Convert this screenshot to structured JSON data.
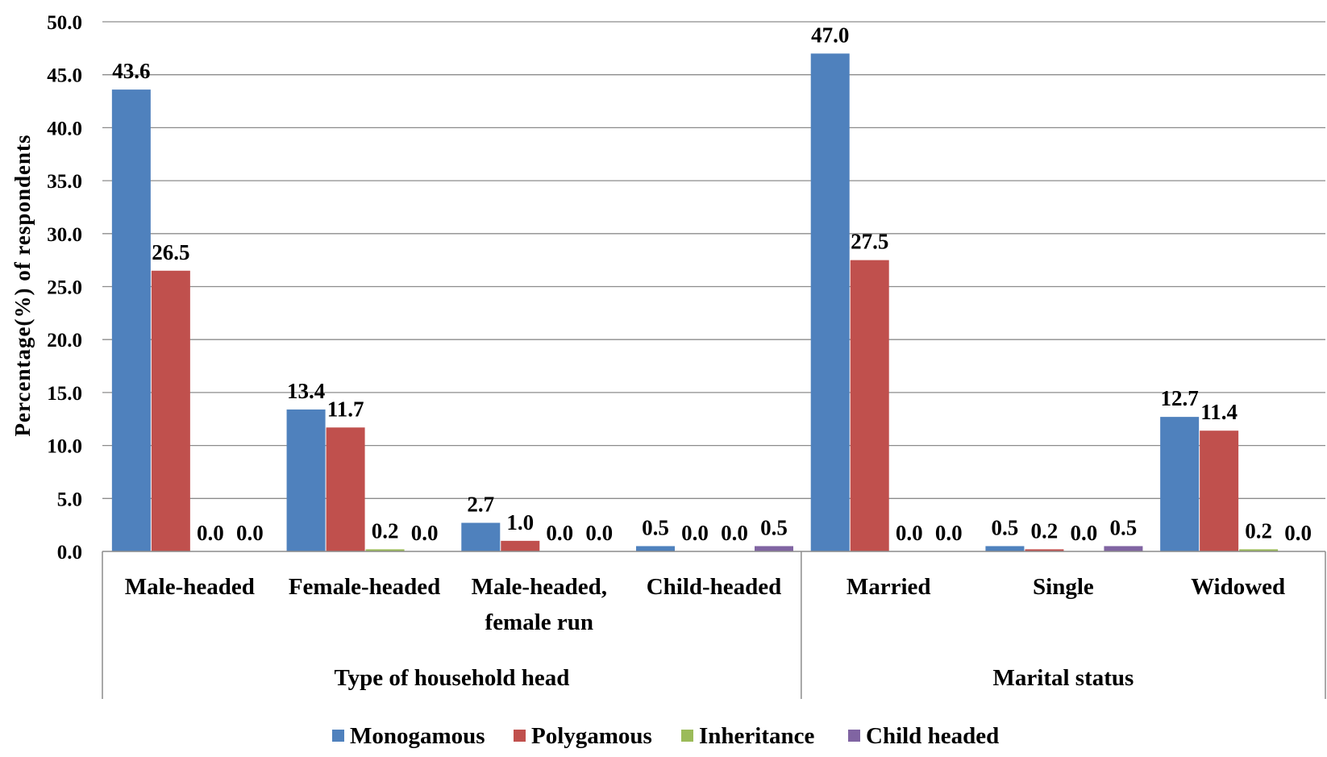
{
  "chart_data": {
    "type": "bar",
    "ylabel": "Percentage(%) of respondents",
    "ylim": [
      0,
      50
    ],
    "yticks": [
      "0.0",
      "5.0",
      "10.0",
      "15.0",
      "20.0",
      "25.0",
      "30.0",
      "35.0",
      "40.0",
      "45.0",
      "50.0"
    ],
    "grid": true,
    "legend_position": "bottom",
    "groups": [
      {
        "label": "Type of household head",
        "categories": [
          0,
          1,
          2,
          3
        ]
      },
      {
        "label": "Marital status",
        "categories": [
          4,
          5,
          6
        ]
      }
    ],
    "categories": [
      [
        "Male-headed"
      ],
      [
        "Female-headed"
      ],
      [
        "Male-headed,",
        "female run"
      ],
      [
        "Child-headed"
      ],
      [
        "Married"
      ],
      [
        "Single"
      ],
      [
        "Widowed"
      ]
    ],
    "series": [
      {
        "name": "Monogamous",
        "color": "#4F81BD",
        "values": [
          43.6,
          13.4,
          2.7,
          0.5,
          47.0,
          0.5,
          12.7
        ],
        "labels": [
          "43.6",
          "13.4",
          "2.7",
          "0.5",
          "47.0",
          "0.5",
          "12.7"
        ]
      },
      {
        "name": "Polygamous",
        "color": "#C0504D",
        "values": [
          26.5,
          11.7,
          1.0,
          0.0,
          27.5,
          0.2,
          11.4
        ],
        "labels": [
          "26.5",
          "11.7",
          "1.0",
          "0.0",
          "27.5",
          "0.2",
          "11.4"
        ]
      },
      {
        "name": "Inheritance",
        "color": "#9BBB59",
        "values": [
          0.0,
          0.2,
          0.0,
          0.0,
          0.0,
          0.0,
          0.2
        ],
        "labels": [
          "0.0",
          "0.2",
          "0.0",
          "0.0",
          "0.0",
          "0.0",
          "0.2"
        ]
      },
      {
        "name": "Child headed",
        "color": "#8064A2",
        "values": [
          0.0,
          0.0,
          0.0,
          0.5,
          0.0,
          0.5,
          0.0
        ],
        "labels": [
          "0.0",
          "0.0",
          "0.0",
          "0.5",
          "0.0",
          "0.5",
          "0.0"
        ]
      }
    ]
  }
}
